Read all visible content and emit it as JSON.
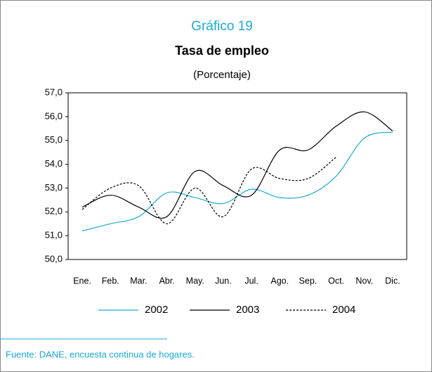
{
  "chart_data": {
    "type": "line",
    "title": "Gráfico 19",
    "subtitle": "Tasa de empleo",
    "unit_label": "(Porcentaje)",
    "source": "Fuente: DANE, encuesta continua de hogares.",
    "categories": [
      "Ene.",
      "Feb.",
      "Mar.",
      "Abr.",
      "May.",
      "Jun.",
      "Jul.",
      "Ago.",
      "Sep.",
      "Oct.",
      "Nov.",
      "Dic."
    ],
    "series": [
      {
        "name": "2002",
        "color": "#1aa9d6",
        "dashed": false,
        "values": [
          51.2,
          51.5,
          51.8,
          52.8,
          52.6,
          52.35,
          52.95,
          52.6,
          52.7,
          53.5,
          55.1,
          55.35
        ]
      },
      {
        "name": "2003",
        "color": "#000000",
        "dashed": false,
        "values": [
          52.2,
          52.7,
          52.2,
          51.8,
          53.7,
          53.1,
          52.7,
          54.6,
          54.6,
          55.6,
          56.2,
          55.4
        ]
      },
      {
        "name": "2004",
        "color": "#000000",
        "dashed": true,
        "values": [
          52.1,
          53.0,
          53.1,
          51.5,
          53.0,
          51.8,
          53.8,
          53.4,
          53.4,
          54.3,
          null,
          null
        ]
      }
    ],
    "ylim": [
      50,
      57
    ],
    "yticks": [
      {
        "value": 50,
        "label": "50,0"
      },
      {
        "value": 51,
        "label": "51,0"
      },
      {
        "value": 52,
        "label": "52,0"
      },
      {
        "value": 53,
        "label": "53,0"
      },
      {
        "value": 54,
        "label": "54,0"
      },
      {
        "value": 55,
        "label": "55,0"
      },
      {
        "value": 56,
        "label": "56,0"
      },
      {
        "value": 57,
        "label": "57,0"
      }
    ],
    "grid": false,
    "legend": "bottom"
  }
}
